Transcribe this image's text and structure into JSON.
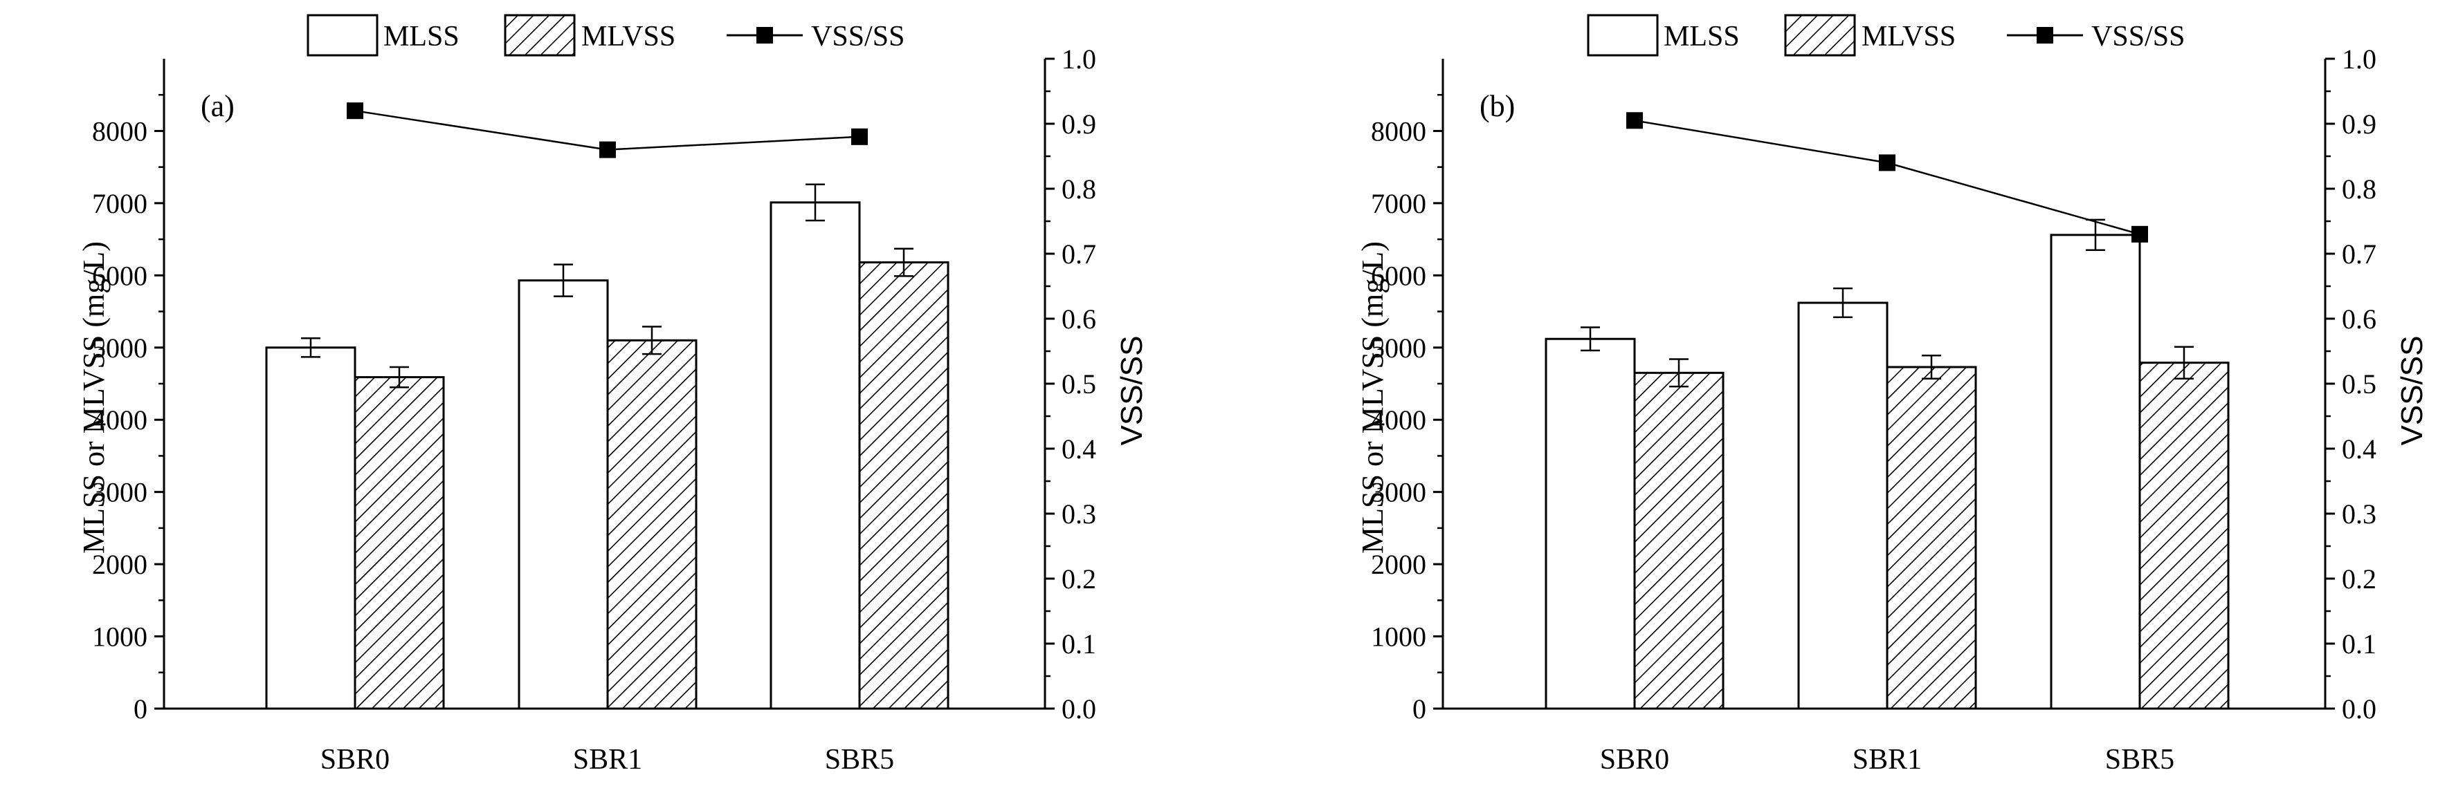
{
  "legend": {
    "mlss_label": "MLSS",
    "mlvss_label": "MLVSS",
    "ratio_label": "VSS/SS"
  },
  "colors": {
    "axis": "#000000",
    "bar_fill": "#ffffff",
    "hatch": "#000000",
    "line": "#000000"
  },
  "chart_data": [
    {
      "type": "bar",
      "panel_label": "(a)",
      "categories": [
        "SBR0",
        "SBR1",
        "SBR5"
      ],
      "ylabel": "MLSS or MLVSS (mg/L)",
      "y2label": "VSS/SS",
      "ylim": [
        0,
        9000
      ],
      "y2lim": [
        0,
        1.0
      ],
      "yticks": [
        "0",
        "1000",
        "2000",
        "3000",
        "4000",
        "5000",
        "6000",
        "7000",
        "8000"
      ],
      "y2ticks": [
        "0.0",
        "0.1",
        "0.2",
        "0.3",
        "0.4",
        "0.5",
        "0.6",
        "0.7",
        "0.8",
        "0.9",
        "1.0"
      ],
      "series": [
        {
          "name": "MLSS",
          "kind": "bar",
          "values": [
            5000,
            5930,
            7010
          ],
          "errors": [
            130,
            220,
            250
          ]
        },
        {
          "name": "MLVSS",
          "kind": "bar-hatched",
          "values": [
            4590,
            5100,
            6180
          ],
          "errors": [
            140,
            190,
            190
          ]
        },
        {
          "name": "VSS/SS",
          "kind": "line",
          "axis": "right",
          "values": [
            0.92,
            0.86,
            0.88
          ]
        }
      ]
    },
    {
      "type": "bar",
      "panel_label": "(b)",
      "categories": [
        "SBR0",
        "SBR1",
        "SBR5"
      ],
      "ylabel": "MLSS or MLVSS (mg/L)",
      "y2label": "VSS/SS",
      "ylim": [
        0,
        9000
      ],
      "y2lim": [
        0,
        1.0
      ],
      "yticks": [
        "0",
        "1000",
        "2000",
        "3000",
        "4000",
        "5000",
        "6000",
        "7000",
        "8000"
      ],
      "y2ticks": [
        "0.0",
        "0.1",
        "0.2",
        "0.3",
        "0.4",
        "0.5",
        "0.6",
        "0.7",
        "0.8",
        "0.9",
        "1.0"
      ],
      "series": [
        {
          "name": "MLSS",
          "kind": "bar",
          "values": [
            5120,
            5620,
            6560
          ],
          "errors": [
            160,
            200,
            210
          ]
        },
        {
          "name": "MLVSS",
          "kind": "bar-hatched",
          "values": [
            4650,
            4730,
            4790
          ],
          "errors": [
            190,
            160,
            220
          ]
        },
        {
          "name": "VSS/SS",
          "kind": "line",
          "axis": "right",
          "values": [
            0.905,
            0.84,
            0.73
          ]
        }
      ]
    }
  ]
}
